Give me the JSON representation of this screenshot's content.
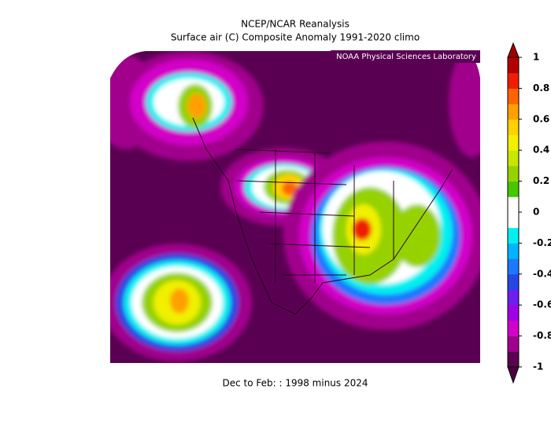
{
  "title": "NCEP/NCAR Reanalysis",
  "subtitle": "Surface air (C) Composite Anomaly 1991-2020 climo",
  "credit": "NOAA Physical Sciences Laboratory",
  "footer": "Dec to Feb: : 1998 minus 2024",
  "colorbar": {
    "lim": [
      -1,
      1
    ],
    "ticks": [
      1,
      0.8,
      0.6,
      0.4,
      0.2,
      0,
      -0.2,
      -0.4,
      -0.6,
      -0.8,
      -1
    ],
    "bin_colors": [
      "#5a0052",
      "#a0008c",
      "#d200c8",
      "#a000e6",
      "#6e1ef0",
      "#2846e6",
      "#1e78ff",
      "#00b4ff",
      "#00f0f0",
      "#ffffff",
      "#ffffff",
      "#46c800",
      "#96d200",
      "#c8e600",
      "#f0f000",
      "#ffd200",
      "#ffa000",
      "#ff6400",
      "#f01e00",
      "#b40000"
    ],
    "over_color": "#a00000",
    "under_color": "#4a0040"
  }
}
